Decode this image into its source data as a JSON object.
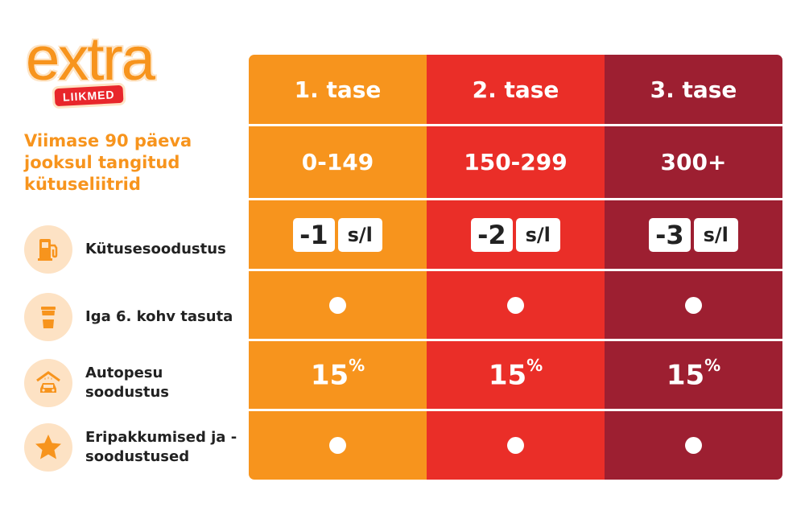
{
  "logo": {
    "word": "extra",
    "badge": "LIIKMED"
  },
  "criterion_label": "Viimase 90 päeva jooksul tangitud kütuseliitrid",
  "benefits": [
    {
      "icon": "fuel-pump-icon",
      "label": "Kütusesoodustus"
    },
    {
      "icon": "coffee-cup-icon",
      "label": "Iga 6. kohv tasuta"
    },
    {
      "icon": "car-wash-icon",
      "label": "Autopesu soodustus"
    },
    {
      "icon": "star-icon",
      "label": "Eripakkumised ja -soodustused"
    }
  ],
  "colors": {
    "tier1": "#f7941d",
    "tier2": "#ea2e28",
    "tier3": "#9d1f31",
    "icon_bg": "#fde2c4"
  },
  "tiers": [
    {
      "name": "1. tase",
      "liters": "0-149",
      "discount_value": "-1",
      "discount_unit": "s/l",
      "coffee": "●",
      "carwash_value": "15",
      "carwash_unit": "%",
      "offers": "●"
    },
    {
      "name": "2. tase",
      "liters": "150-299",
      "discount_value": "-2",
      "discount_unit": "s/l",
      "coffee": "●",
      "carwash_value": "15",
      "carwash_unit": "%",
      "offers": "●"
    },
    {
      "name": "3. tase",
      "liters": "300+",
      "discount_value": "-3",
      "discount_unit": "s/l",
      "coffee": "●",
      "carwash_value": "15",
      "carwash_unit": "%",
      "offers": "●"
    }
  ]
}
